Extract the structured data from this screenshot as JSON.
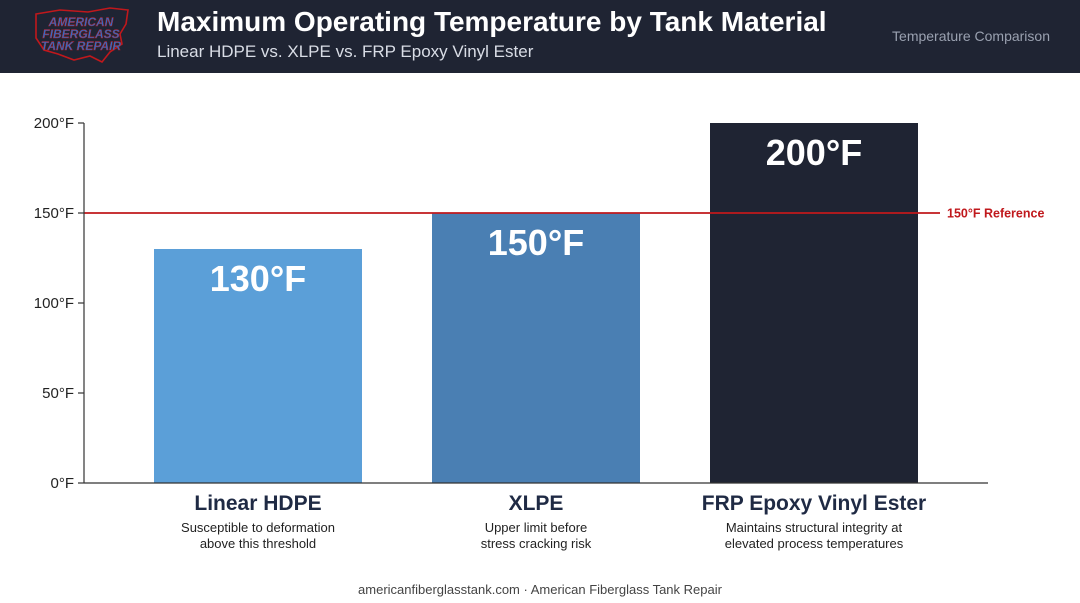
{
  "header": {
    "logo_text": "AMERICAN FIBERGLASS TANK REPAIR",
    "title": "Maximum Operating Temperature by Tank Material",
    "subtitle": "Linear HDPE vs. XLPE vs. FRP Epoxy Vinyl Ester",
    "tag": "Temperature Comparison"
  },
  "colors": {
    "header_bg": "#1f2433",
    "hdpe": "#5b9fd8",
    "xlpe": "#4a7fb3",
    "frp": "#1f2433",
    "reference": "#c0181c"
  },
  "chart_data": {
    "type": "bar",
    "categories": [
      "Linear HDPE",
      "XLPE",
      "FRP Epoxy Vinyl Ester"
    ],
    "values": [
      130,
      150,
      200
    ],
    "value_labels": [
      "130°F",
      "150°F",
      "200°F"
    ],
    "descriptions": [
      [
        "Susceptible to deformation",
        "above this threshold"
      ],
      [
        "Upper limit before",
        "stress cracking risk"
      ],
      [
        "Maintains structural integrity at",
        "elevated process temperatures"
      ]
    ],
    "ylim": [
      0,
      200
    ],
    "yticks": [
      0,
      50,
      100,
      150,
      200
    ],
    "ytick_labels": [
      "0°F",
      "50°F",
      "100°F",
      "150°F",
      "200°F"
    ],
    "reference_line": {
      "value": 150,
      "label": "150°F Reference"
    },
    "grid": false,
    "legend": "none"
  },
  "footer": {
    "text": "americanfiberglasstank.com · American Fiberglass Tank Repair"
  }
}
